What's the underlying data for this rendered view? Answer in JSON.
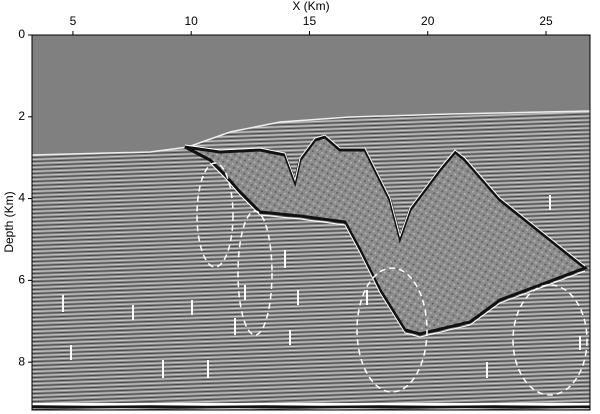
{
  "chart_data": {
    "type": "image",
    "xlabel": "X (Km)",
    "ylabel": "Depth (Km)",
    "xlim": [
      3.27,
      26.86
    ],
    "xticks": [
      5,
      10,
      15,
      20,
      25
    ],
    "ylim": [
      0,
      9.17
    ],
    "yticks": [
      0,
      2,
      4,
      6,
      8
    ]
  }
}
